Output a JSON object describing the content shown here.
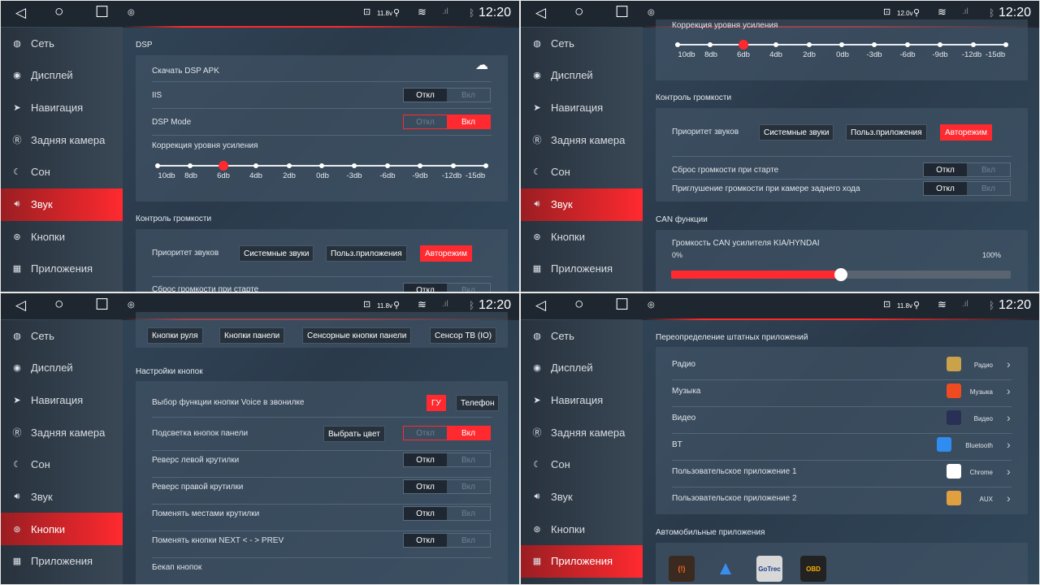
{
  "status": {
    "time": "12:20",
    "icons": [
      "back-icon",
      "home-icon",
      "recents-icon",
      "app-icon",
      "battery-icon",
      "location-icon",
      "wifi-icon",
      "signal-icon",
      "bluetooth-icon"
    ]
  },
  "accent": "#ff2a2f",
  "sidebar": [
    {
      "label": "Сеть",
      "icon": "globe-icon"
    },
    {
      "label": "Дисплей",
      "icon": "display-icon"
    },
    {
      "label": "Навигация",
      "icon": "navigation-icon"
    },
    {
      "label": "Задняя камера",
      "icon": "rear-camera-icon"
    },
    {
      "label": "Сон",
      "icon": "moon-icon"
    },
    {
      "label": "Звук",
      "icon": "speaker-icon"
    },
    {
      "label": "Кнопки",
      "icon": "steering-wheel-icon"
    },
    {
      "label": "Приложения",
      "icon": "apps-icon"
    }
  ],
  "toggle": {
    "off": "Откл",
    "on": "Вкл"
  },
  "eq_labels": [
    "10db",
    "8db",
    "6db",
    "4db",
    "2db",
    "0db",
    "-3db",
    "-6db",
    "-9db",
    "-12db",
    "-15db"
  ],
  "eq_selected": "6db",
  "priority": {
    "label": "Приоритет звуков",
    "options": [
      "Системные звуки",
      "Польз.приложения",
      "Авторежим"
    ],
    "selected": "Авторежим"
  },
  "panels": [
    {
      "voltage": "11.8v",
      "active": "Звук",
      "dsp_header": "DSP",
      "download": "Скачать DSP APK",
      "iis": {
        "label": "IIS",
        "state": "off"
      },
      "dsp_mode": {
        "label": "DSP Mode",
        "state": "on"
      },
      "gain": "Коррекция уровня усиления",
      "volume_header": "Контроль громкости",
      "reset": {
        "label": "Сброс громкости при старте",
        "state": "off"
      }
    },
    {
      "voltage": "12.0v",
      "active": "Звук",
      "gain": "Коррекция уровня усиления",
      "volume_header": "Контроль громкости",
      "reset": {
        "label": "Сброс громкости при старте",
        "state": "off"
      },
      "mute": {
        "label": "Приглушение громкости при камере заднего хода",
        "state": "off"
      },
      "can_header": "CAN функции",
      "can_volume": {
        "label": "Громкость CAN усилителя KIA/HYNDAI",
        "min": "0%",
        "max": "100%",
        "value_percent": 50
      }
    },
    {
      "voltage": "11.8v",
      "active": "Кнопки",
      "tabs": [
        "Кнопки руля",
        "Кнопки панели",
        "Сенсорные кнопки панели",
        "Сенсор ТВ (IO)"
      ],
      "header": "Настройки кнопок",
      "voice": {
        "label": "Выбор функции кнопки Voice в звонилке",
        "options": [
          "ГУ",
          "Телефон"
        ],
        "selected": "ГУ"
      },
      "backlight": {
        "label": "Подсветка кнопок панели",
        "button": "Выбрать цвет",
        "state": "on"
      },
      "rows": [
        {
          "label": "Реверс левой крутилки",
          "state": "off"
        },
        {
          "label": "Реверс правой крутилки",
          "state": "off"
        },
        {
          "label": "Поменять местами крутилки",
          "state": "off"
        },
        {
          "label": "Поменять кнопки NEXT < - > PREV",
          "state": "off"
        }
      ],
      "backup": "Бекап кнопок"
    },
    {
      "voltage": "11.8v",
      "active": "Приложения",
      "header": "Переопределение штатных приложений",
      "apps": [
        {
          "label": "Радио",
          "app": "Радио",
          "icon": "radio-app-icon",
          "color": "#c9a24a"
        },
        {
          "label": "Музыка",
          "app": "Музыка",
          "icon": "music-app-icon",
          "color": "#f04a20"
        },
        {
          "label": "Видео",
          "app": "Видео",
          "icon": "video-app-icon",
          "color": "#2a2f55"
        },
        {
          "label": "BT",
          "app": "Bluetooth",
          "icon": "bluetooth-app-icon",
          "color": "#2f8cf0"
        },
        {
          "label": "Пользовательское приложение 1",
          "app": "Chrome",
          "icon": "chrome-app-icon",
          "color": "#ffffff"
        },
        {
          "label": "Пользовательское приложение 2",
          "app": "AUX",
          "icon": "aux-app-icon",
          "color": "#e0a040"
        }
      ],
      "car_header": "Автомобильные приложения",
      "car_apps": [
        {
          "icon": "tpms-app-icon",
          "color": "#3a2a20"
        },
        {
          "icon": "android-auto-carplay-icon",
          "color": "transparent"
        },
        {
          "icon": "gotrec-app-icon",
          "color": "#d8d8d8",
          "text": "GoTrec"
        },
        {
          "icon": "obd-check-app-icon",
          "color": "#222222",
          "text": "OBD"
        }
      ]
    }
  ]
}
